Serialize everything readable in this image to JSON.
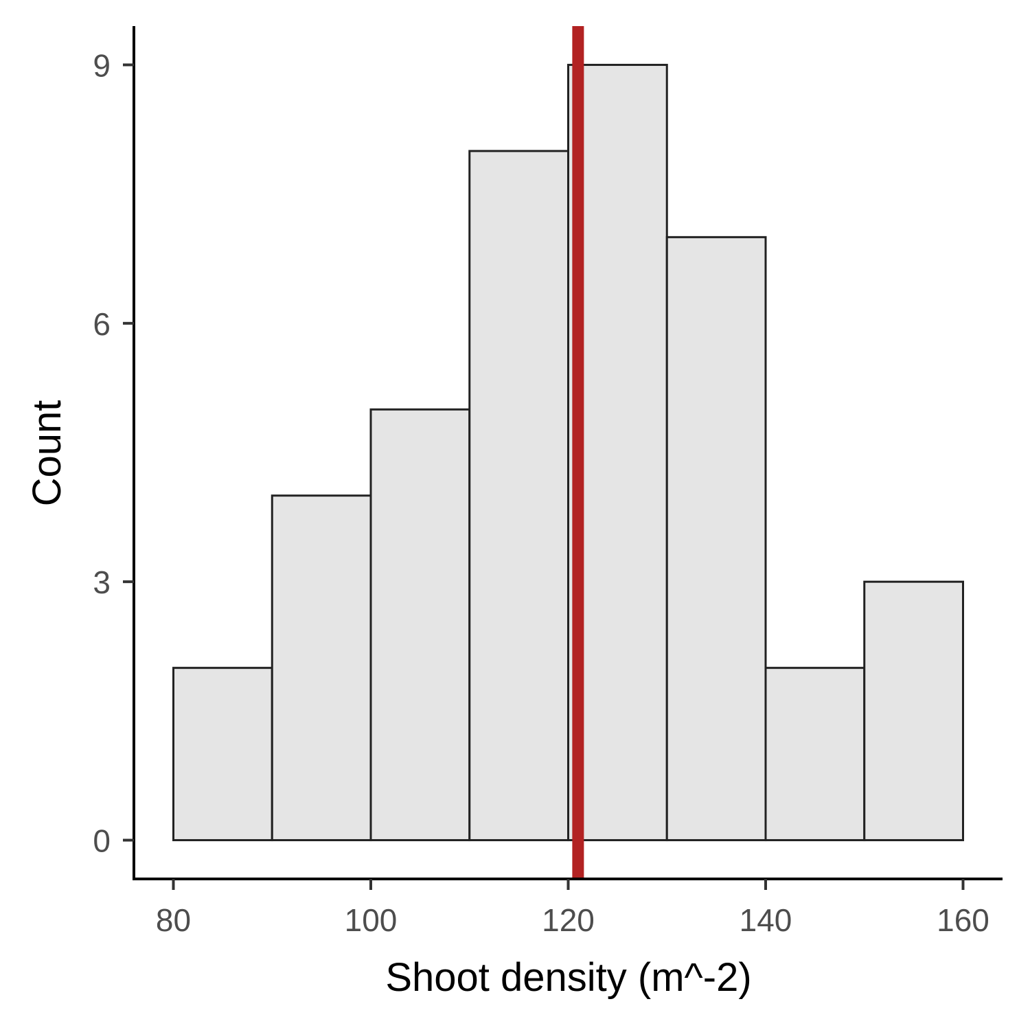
{
  "chart_data": {
    "type": "bar",
    "subtype": "histogram",
    "xlabel": "Shoot density (m^-2)",
    "ylabel": "Count",
    "bins": [
      {
        "start": 80,
        "end": 90,
        "count": 2
      },
      {
        "start": 90,
        "end": 100,
        "count": 4
      },
      {
        "start": 100,
        "end": 110,
        "count": 5
      },
      {
        "start": 110,
        "end": 120,
        "count": 8
      },
      {
        "start": 120,
        "end": 130,
        "count": 9
      },
      {
        "start": 130,
        "end": 140,
        "count": 7
      },
      {
        "start": 140,
        "end": 150,
        "count": 2
      },
      {
        "start": 150,
        "end": 160,
        "count": 3
      }
    ],
    "reference_line": {
      "x": 121,
      "color": "#b22222"
    },
    "xlim": [
      76,
      164
    ],
    "ylim": [
      -0.45,
      9.45
    ],
    "x_ticks": [
      80,
      100,
      120,
      140,
      160
    ],
    "y_ticks": [
      0,
      3,
      6,
      9
    ],
    "bar_fill": "#e5e5e5",
    "bar_stroke": "#222222",
    "grid": false
  }
}
